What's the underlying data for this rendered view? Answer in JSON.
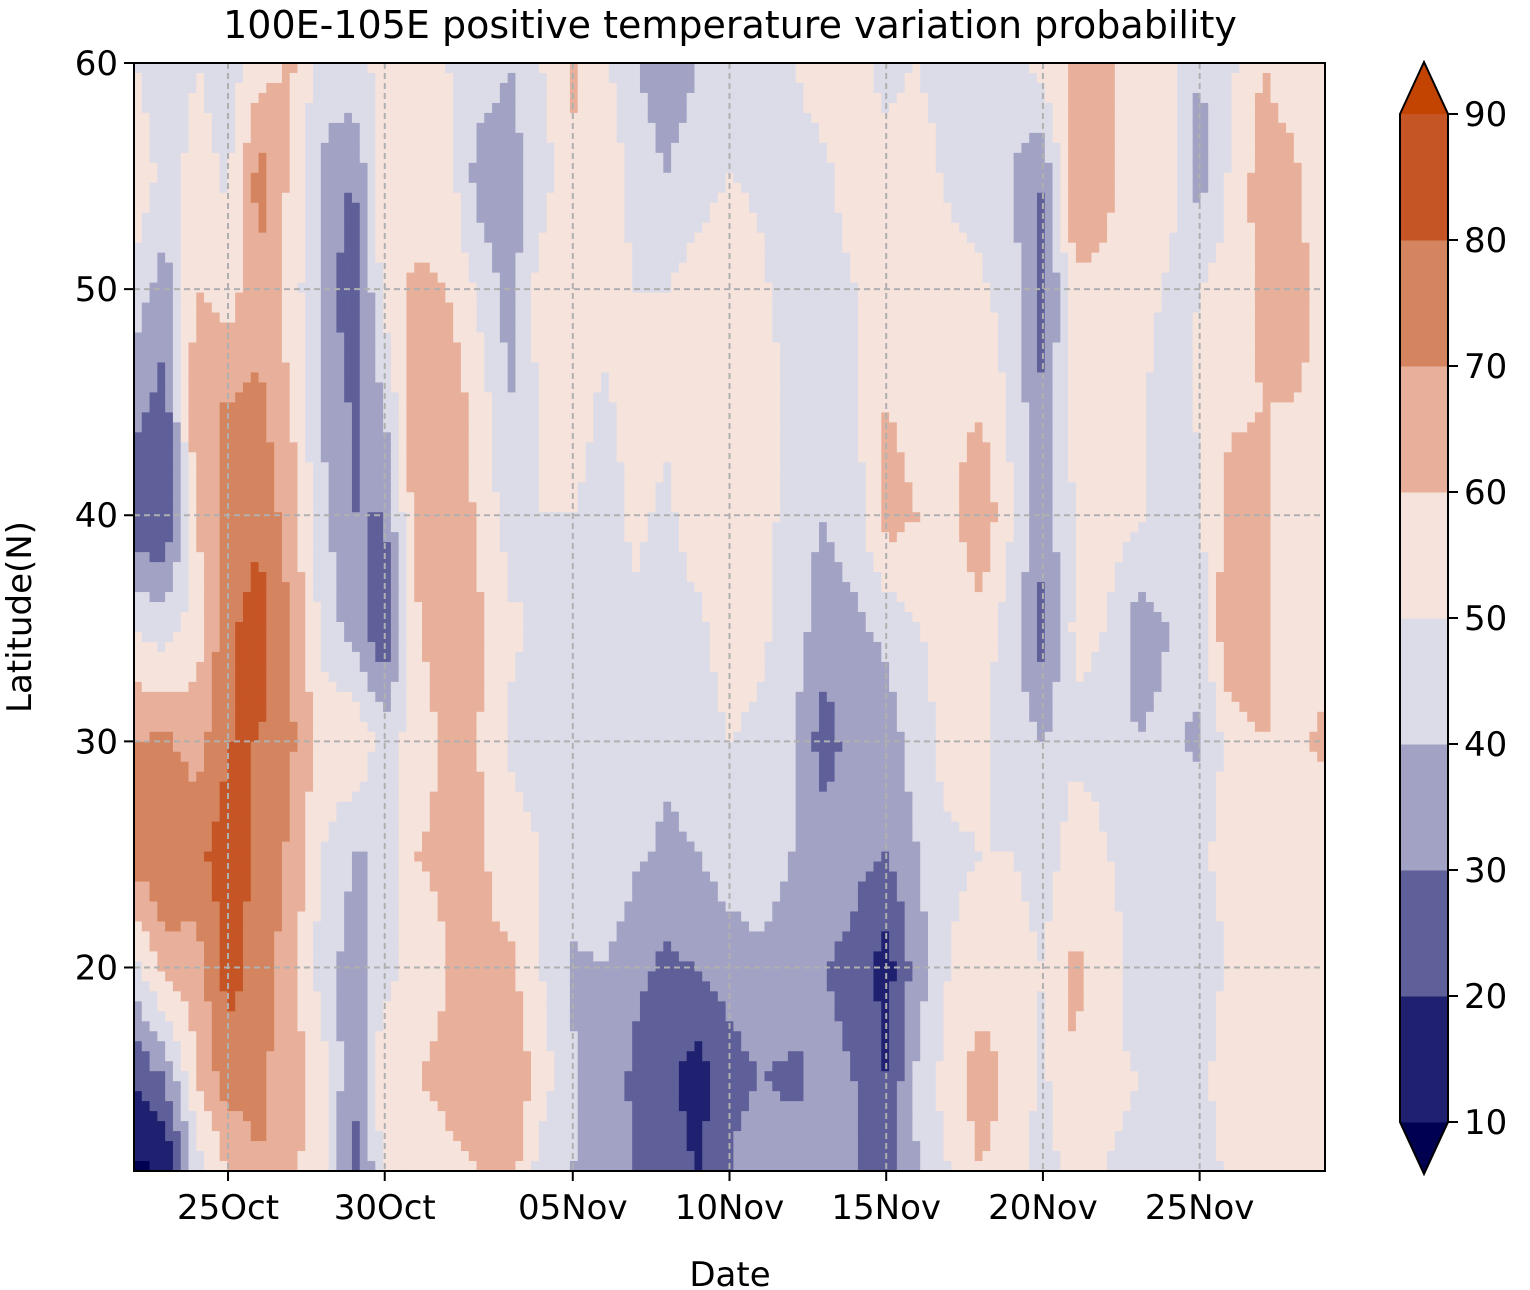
{
  "chart_data": {
    "type": "heatmap",
    "title": "100E-105E positive temperature variation probability",
    "xlabel": "Date",
    "ylabel": "Latitude(N)",
    "x_ticks": [
      "25Oct",
      "30Oct",
      "05Nov",
      "10Nov",
      "15Nov",
      "20Nov",
      "25Nov"
    ],
    "x_range": [
      "22Oct",
      "29Nov"
    ],
    "y_ticks": [
      "20",
      "30",
      "40",
      "50",
      "60"
    ],
    "ylim": [
      11,
      60
    ],
    "grid": true,
    "colorbar": {
      "levels": [
        10,
        20,
        30,
        40,
        50,
        60,
        70,
        80,
        90
      ],
      "tick_labels": [
        "10",
        "20",
        "30",
        "40",
        "50",
        "60",
        "70",
        "80",
        "90"
      ],
      "extend": "both",
      "colors": [
        "#000050",
        "#1f2070",
        "#5f5f99",
        "#a2a2c4",
        "#dcdce8",
        "#f6e3dc",
        "#e8b09a",
        "#d4845f",
        "#c65525",
        "#c24400"
      ]
    },
    "dates": [
      "22Oct",
      "23Oct",
      "24Oct",
      "25Oct",
      "26Oct",
      "27Oct",
      "28Oct",
      "29Oct",
      "30Oct",
      "31Oct",
      "01Nov",
      "02Nov",
      "03Nov",
      "04Nov",
      "05Nov",
      "06Nov",
      "07Nov",
      "08Nov",
      "09Nov",
      "10Nov",
      "11Nov",
      "12Nov",
      "13Nov",
      "14Nov",
      "15Nov",
      "16Nov",
      "17Nov",
      "18Nov",
      "19Nov",
      "20Nov",
      "21Nov",
      "22Nov",
      "23Nov",
      "24Nov",
      "25Nov",
      "26Nov",
      "27Nov",
      "28Nov",
      "29Nov"
    ],
    "latitudes": [
      11,
      15,
      20,
      25,
      30,
      35,
      40,
      45,
      50,
      55,
      60
    ],
    "values": [
      [
        8,
        20,
        45,
        75,
        70,
        50,
        20,
        35,
        45,
        60,
        50
      ],
      [
        10,
        30,
        65,
        80,
        72,
        45,
        20,
        25,
        35,
        45,
        40
      ],
      [
        45,
        60,
        65,
        78,
        65,
        55,
        60,
        70,
        60,
        55,
        50
      ],
      [
        60,
        75,
        85,
        85,
        80,
        78,
        72,
        70,
        55,
        48,
        45
      ],
      [
        70,
        72,
        75,
        78,
        80,
        85,
        78,
        72,
        68,
        75,
        55
      ],
      [
        62,
        65,
        65,
        68,
        72,
        70,
        65,
        60,
        55,
        58,
        62
      ],
      [
        55,
        55,
        45,
        50,
        55,
        48,
        42,
        40,
        40,
        38,
        45
      ],
      [
        25,
        30,
        35,
        40,
        60,
        35,
        30,
        28,
        20,
        30,
        48
      ],
      [
        50,
        60,
        45,
        40,
        45,
        20,
        30,
        40,
        55,
        58,
        52
      ],
      [
        55,
        60,
        55,
        60,
        55,
        58,
        65,
        70,
        62,
        55,
        50
      ],
      [
        58,
        62,
        60,
        62,
        62,
        68,
        70,
        68,
        60,
        55,
        50
      ],
      [
        60,
        65,
        60,
        62,
        60,
        62,
        58,
        55,
        48,
        35,
        45
      ],
      [
        65,
        70,
        62,
        55,
        48,
        52,
        45,
        40,
        35,
        35,
        40
      ],
      [
        45,
        55,
        50,
        50,
        45,
        48,
        50,
        52,
        55,
        45,
        50
      ],
      [
        40,
        42,
        38,
        45,
        48,
        45,
        50,
        55,
        60,
        58,
        62
      ],
      [
        35,
        35,
        40,
        50,
        48,
        50,
        45,
        48,
        55,
        60,
        52
      ],
      [
        30,
        28,
        32,
        42,
        45,
        48,
        52,
        55,
        50,
        45,
        40
      ],
      [
        25,
        22,
        28,
        38,
        42,
        45,
        48,
        52,
        50,
        40,
        35
      ],
      [
        20,
        15,
        30,
        40,
        45,
        48,
        55,
        58,
        55,
        45,
        40
      ],
      [
        30,
        25,
        35,
        45,
        50,
        55,
        58,
        60,
        58,
        50,
        45
      ],
      [
        40,
        30,
        38,
        45,
        48,
        52,
        55,
        55,
        52,
        48,
        50
      ],
      [
        35,
        28,
        35,
        40,
        42,
        45,
        45,
        48,
        45,
        45,
        50
      ],
      [
        30,
        32,
        30,
        35,
        25,
        35,
        40,
        42,
        45,
        48,
        55
      ],
      [
        30,
        30,
        28,
        32,
        35,
        38,
        45,
        48,
        50,
        55,
        52
      ],
      [
        25,
        20,
        15,
        30,
        35,
        42,
        65,
        60,
        55,
        52,
        48
      ],
      [
        40,
        42,
        35,
        40,
        45,
        50,
        60,
        55,
        52,
        55,
        50
      ],
      [
        50,
        55,
        50,
        48,
        55,
        52,
        55,
        58,
        55,
        48,
        45
      ],
      [
        60,
        65,
        55,
        50,
        52,
        55,
        70,
        58,
        52,
        45,
        48
      ],
      [
        55,
        58,
        55,
        50,
        45,
        45,
        50,
        48,
        45,
        40,
        45
      ],
      [
        45,
        48,
        50,
        45,
        40,
        25,
        35,
        30,
        25,
        30,
        55
      ],
      [
        55,
        60,
        62,
        55,
        48,
        52,
        50,
        55,
        58,
        68,
        62
      ],
      [
        50,
        52,
        55,
        50,
        48,
        50,
        55,
        60,
        58,
        62,
        65
      ],
      [
        48,
        50,
        45,
        48,
        40,
        35,
        52,
        55,
        58,
        55,
        50
      ],
      [
        45,
        42,
        40,
        45,
        42,
        40,
        45,
        40,
        48,
        55,
        52
      ],
      [
        40,
        45,
        42,
        48,
        38,
        45,
        48,
        52,
        50,
        35,
        40
      ],
      [
        55,
        60,
        52,
        55,
        55,
        70,
        65,
        58,
        55,
        52,
        48
      ],
      [
        50,
        55,
        52,
        58,
        60,
        65,
        62,
        60,
        62,
        65,
        60
      ],
      [
        52,
        55,
        55,
        55,
        58,
        52,
        55,
        60,
        65,
        62,
        55
      ],
      [
        50,
        52,
        55,
        50,
        62,
        55,
        60,
        58,
        55,
        52,
        50
      ]
    ]
  }
}
